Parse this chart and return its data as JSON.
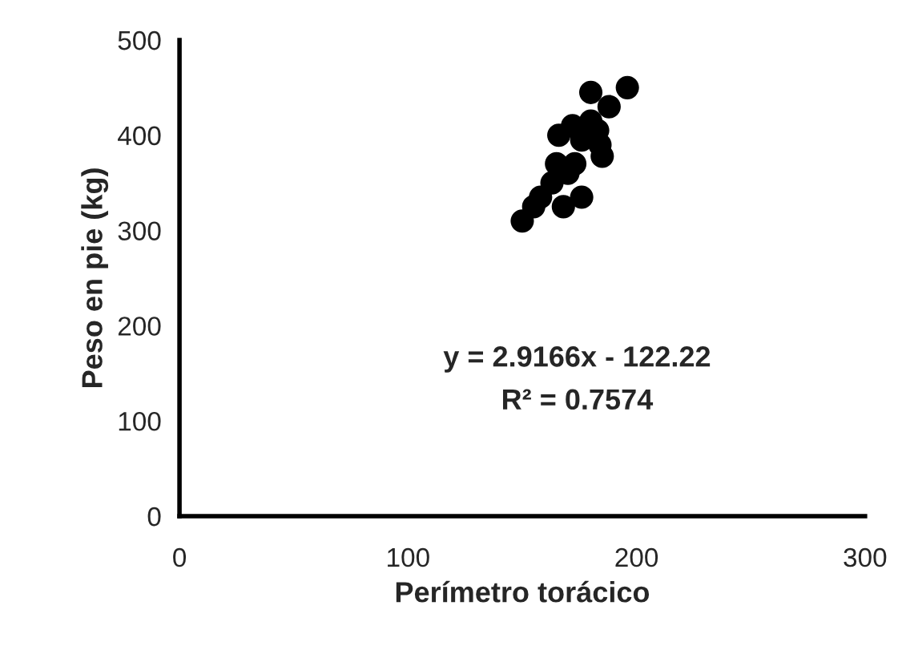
{
  "chart_data": {
    "type": "scatter",
    "xlabel": "Perímetro torácico",
    "ylabel": "Peso en pie (kg)",
    "x": [
      150,
      155,
      158,
      163,
      165,
      166,
      168,
      170,
      172,
      173,
      176,
      176,
      180,
      180,
      183,
      184,
      185,
      188,
      196
    ],
    "values": [
      310,
      325,
      335,
      350,
      370,
      400,
      325,
      360,
      410,
      370,
      335,
      395,
      445,
      415,
      405,
      390,
      378,
      430,
      450
    ],
    "color": "#000000",
    "marker": "circle",
    "xlim": [
      0,
      300
    ],
    "xticks": [
      0,
      100,
      200,
      300
    ],
    "ylim": [
      0,
      500
    ],
    "yticks": [
      0,
      100,
      200,
      300,
      400,
      500
    ],
    "annotations": [
      "y = 2.9166x - 122.22",
      "R² = 0.7574"
    ]
  }
}
